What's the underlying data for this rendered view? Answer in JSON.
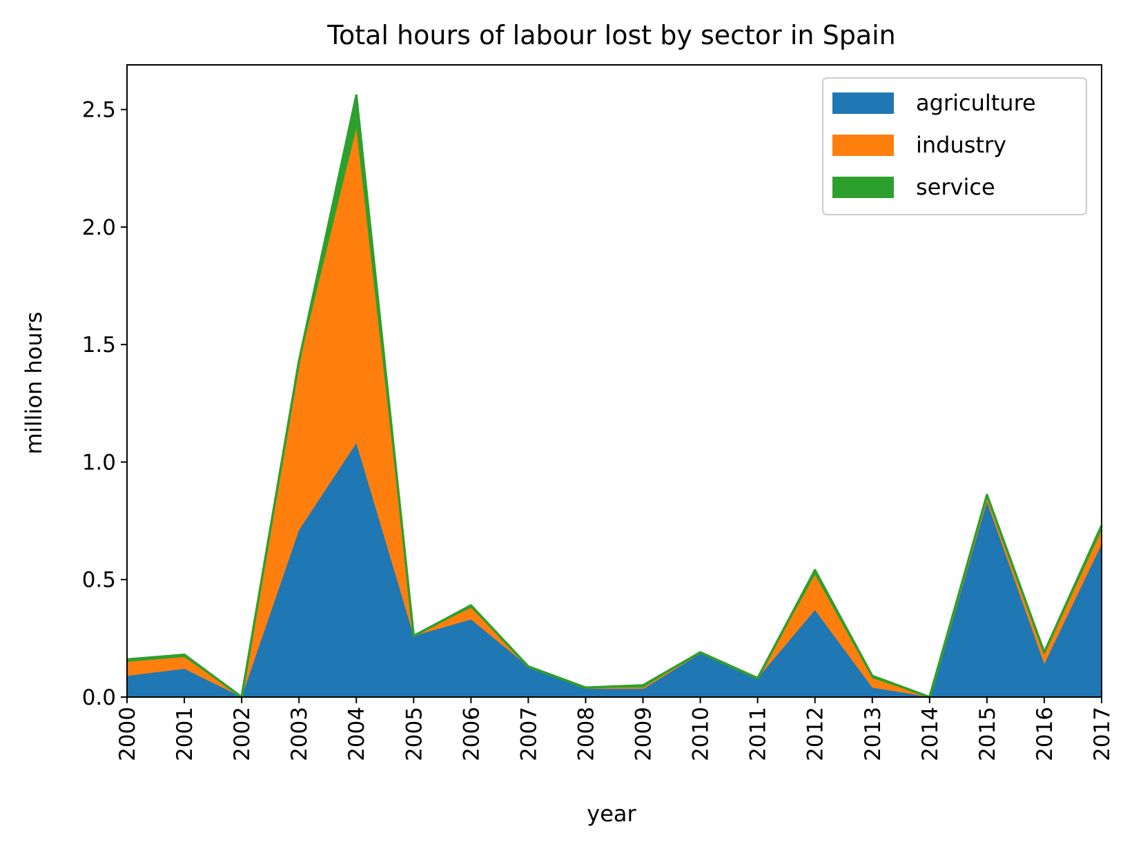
{
  "chart_data": {
    "type": "area",
    "stacked": true,
    "title": "Total hours of labour lost by sector in Spain",
    "xlabel": "year",
    "ylabel": "million hours",
    "x": [
      2000,
      2001,
      2002,
      2003,
      2004,
      2005,
      2006,
      2007,
      2008,
      2009,
      2010,
      2011,
      2012,
      2013,
      2014,
      2015,
      2016,
      2017
    ],
    "xlim": [
      2000,
      2017
    ],
    "ylim": [
      0,
      2.69
    ],
    "yticks": [
      0.0,
      0.5,
      1.0,
      1.5,
      2.0,
      2.5
    ],
    "ytick_labels": [
      "0.0",
      "0.5",
      "1.0",
      "1.5",
      "2.0",
      "2.5"
    ],
    "grid": false,
    "legend_position": "top-right",
    "series": [
      {
        "name": "agriculture",
        "color": "#1f77b4",
        "values": [
          0.09,
          0.12,
          0.0,
          0.71,
          1.08,
          0.26,
          0.33,
          0.13,
          0.04,
          0.04,
          0.19,
          0.08,
          0.37,
          0.04,
          0.0,
          0.83,
          0.14,
          0.65
        ]
      },
      {
        "name": "industry",
        "color": "#ff7f0e",
        "values": [
          0.06,
          0.05,
          0.0,
          0.71,
          1.34,
          0.0,
          0.05,
          0.0,
          0.0,
          0.0,
          0.0,
          0.0,
          0.15,
          0.04,
          0.0,
          0.02,
          0.04,
          0.06
        ]
      },
      {
        "name": "service",
        "color": "#2ca02c",
        "values": [
          0.01,
          0.01,
          0.0,
          0.01,
          0.14,
          0.0,
          0.01,
          0.0,
          0.0,
          0.01,
          0.0,
          0.0,
          0.02,
          0.01,
          0.0,
          0.01,
          0.01,
          0.02
        ]
      }
    ]
  }
}
